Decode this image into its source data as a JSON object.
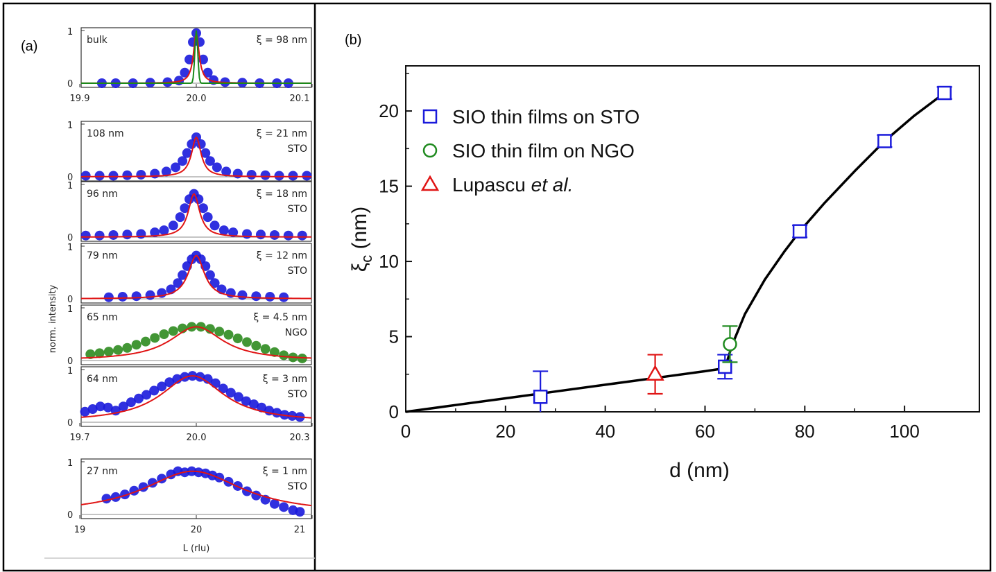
{
  "panels": {
    "a_label": "(a)",
    "b_label": "(b)"
  },
  "chart_data": [
    {
      "type": "scatter",
      "panel": "a",
      "ylabel": "norm. intensity",
      "xlabel": "L (rlu)",
      "subplots": [
        {
          "thickness_label": "bulk",
          "xi_label": "ξ = 98 nm",
          "substrate_label": "",
          "xlim": [
            19.9,
            20.1
          ],
          "x_ticks": [
            "19.9",
            "20.0",
            "20.1"
          ],
          "y_ticks": [
            "0",
            "1"
          ],
          "center": 20.0,
          "fwhm": 0.006,
          "marker_color": "#1a1adb",
          "extra_fit_color": "#1a8a1a",
          "points": [
            [
              19.918,
              0.0
            ],
            [
              19.93,
              0.0
            ],
            [
              19.945,
              0.0
            ],
            [
              19.96,
              0.01
            ],
            [
              19.975,
              0.02
            ],
            [
              19.985,
              0.05
            ],
            [
              19.99,
              0.2
            ],
            [
              19.994,
              0.45
            ],
            [
              19.997,
              0.78
            ],
            [
              20.0,
              0.95
            ],
            [
              20.003,
              0.78
            ],
            [
              20.006,
              0.45
            ],
            [
              20.01,
              0.2
            ],
            [
              20.015,
              0.06
            ],
            [
              20.025,
              0.02
            ],
            [
              20.04,
              0.01
            ],
            [
              20.055,
              0.0
            ],
            [
              20.07,
              0.0
            ],
            [
              20.08,
              0.0
            ]
          ]
        },
        {
          "thickness_label": "108 nm",
          "xi_label": "ξ = 21 nm",
          "substrate_label": "STO",
          "xlim": [
            19.5,
            20.5
          ],
          "x_ticks": [],
          "y_ticks": [
            "0",
            "1"
          ],
          "center": 20.0,
          "fwhm": 0.05,
          "marker_color": "#1a1adb",
          "points": [
            [
              19.52,
              0.02
            ],
            [
              19.58,
              0.02
            ],
            [
              19.64,
              0.02
            ],
            [
              19.7,
              0.03
            ],
            [
              19.76,
              0.04
            ],
            [
              19.82,
              0.06
            ],
            [
              19.87,
              0.1
            ],
            [
              19.91,
              0.18
            ],
            [
              19.94,
              0.3
            ],
            [
              19.96,
              0.45
            ],
            [
              19.98,
              0.62
            ],
            [
              20.0,
              0.75
            ],
            [
              20.02,
              0.62
            ],
            [
              20.04,
              0.45
            ],
            [
              20.06,
              0.3
            ],
            [
              20.09,
              0.18
            ],
            [
              20.13,
              0.1
            ],
            [
              20.18,
              0.06
            ],
            [
              20.24,
              0.04
            ],
            [
              20.3,
              0.03
            ],
            [
              20.36,
              0.02
            ],
            [
              20.42,
              0.02
            ],
            [
              20.48,
              0.02
            ]
          ]
        },
        {
          "thickness_label": "96 nm",
          "xi_label": "ξ = 18 nm",
          "substrate_label": "STO",
          "xlim": [
            19.5,
            20.5
          ],
          "x_ticks": [],
          "y_ticks": [
            "0",
            "1"
          ],
          "center": 19.99,
          "fwhm": 0.06,
          "marker_color": "#1a1adb",
          "points": [
            [
              19.52,
              0.03
            ],
            [
              19.58,
              0.03
            ],
            [
              19.64,
              0.04
            ],
            [
              19.7,
              0.05
            ],
            [
              19.76,
              0.06
            ],
            [
              19.82,
              0.09
            ],
            [
              19.86,
              0.13
            ],
            [
              19.9,
              0.22
            ],
            [
              19.93,
              0.38
            ],
            [
              19.95,
              0.55
            ],
            [
              19.97,
              0.72
            ],
            [
              19.99,
              0.82
            ],
            [
              20.01,
              0.72
            ],
            [
              20.03,
              0.55
            ],
            [
              20.05,
              0.38
            ],
            [
              20.08,
              0.22
            ],
            [
              20.12,
              0.13
            ],
            [
              20.16,
              0.09
            ],
            [
              20.22,
              0.06
            ],
            [
              20.28,
              0.05
            ],
            [
              20.34,
              0.04
            ],
            [
              20.4,
              0.03
            ],
            [
              20.46,
              0.03
            ]
          ]
        },
        {
          "thickness_label": "79 nm",
          "xi_label": "ξ = 12 nm",
          "substrate_label": "STO",
          "xlim": [
            19.5,
            20.5
          ],
          "x_ticks": [],
          "y_ticks": [
            "0",
            "1"
          ],
          "center": 20.0,
          "fwhm": 0.085,
          "marker_color": "#1a1adb",
          "points": [
            [
              19.62,
              0.03
            ],
            [
              19.68,
              0.04
            ],
            [
              19.74,
              0.05
            ],
            [
              19.8,
              0.07
            ],
            [
              19.85,
              0.11
            ],
            [
              19.89,
              0.18
            ],
            [
              19.92,
              0.3
            ],
            [
              19.94,
              0.45
            ],
            [
              19.96,
              0.62
            ],
            [
              19.98,
              0.75
            ],
            [
              20.0,
              0.82
            ],
            [
              20.02,
              0.75
            ],
            [
              20.04,
              0.62
            ],
            [
              20.06,
              0.45
            ],
            [
              20.08,
              0.3
            ],
            [
              20.11,
              0.18
            ],
            [
              20.15,
              0.11
            ],
            [
              20.2,
              0.07
            ],
            [
              20.26,
              0.05
            ],
            [
              20.32,
              0.04
            ],
            [
              20.38,
              0.03
            ]
          ]
        },
        {
          "thickness_label": "65 nm",
          "xi_label": "ξ = 4.5 nm",
          "substrate_label": "NGO",
          "xlim": [
            19.5,
            20.5
          ],
          "x_ticks": [],
          "y_ticks": [
            "0",
            "1"
          ],
          "center": 20.0,
          "fwhm": 0.28,
          "marker_color": "#2e8b1f",
          "points": [
            [
              19.54,
              0.12
            ],
            [
              19.58,
              0.14
            ],
            [
              19.62,
              0.17
            ],
            [
              19.66,
              0.2
            ],
            [
              19.7,
              0.24
            ],
            [
              19.74,
              0.3
            ],
            [
              19.78,
              0.36
            ],
            [
              19.82,
              0.43
            ],
            [
              19.86,
              0.5
            ],
            [
              19.9,
              0.56
            ],
            [
              19.94,
              0.61
            ],
            [
              19.98,
              0.64
            ],
            [
              20.02,
              0.64
            ],
            [
              20.06,
              0.6
            ],
            [
              20.1,
              0.55
            ],
            [
              20.14,
              0.49
            ],
            [
              20.18,
              0.42
            ],
            [
              20.22,
              0.35
            ],
            [
              20.26,
              0.28
            ],
            [
              20.3,
              0.22
            ],
            [
              20.34,
              0.16
            ],
            [
              20.38,
              0.1
            ],
            [
              20.42,
              0.06
            ],
            [
              20.46,
              0.04
            ]
          ]
        },
        {
          "thickness_label": "64 nm",
          "xi_label": "ξ = 3 nm",
          "substrate_label": "STO",
          "xlim": [
            19.7,
            20.3
          ],
          "x_ticks": [
            "19.7",
            "20.0",
            "20.3"
          ],
          "y_ticks": [
            "0",
            "1"
          ],
          "center": 19.99,
          "fwhm": 0.2,
          "marker_color": "#1a1adb",
          "points": [
            [
              19.71,
              0.2
            ],
            [
              19.73,
              0.25
            ],
            [
              19.75,
              0.3
            ],
            [
              19.77,
              0.28
            ],
            [
              19.79,
              0.22
            ],
            [
              19.81,
              0.3
            ],
            [
              19.83,
              0.38
            ],
            [
              19.85,
              0.45
            ],
            [
              19.87,
              0.52
            ],
            [
              19.89,
              0.6
            ],
            [
              19.91,
              0.68
            ],
            [
              19.93,
              0.76
            ],
            [
              19.95,
              0.82
            ],
            [
              19.97,
              0.86
            ],
            [
              19.99,
              0.88
            ],
            [
              20.01,
              0.86
            ],
            [
              20.03,
              0.82
            ],
            [
              20.05,
              0.74
            ],
            [
              20.07,
              0.64
            ],
            [
              20.09,
              0.56
            ],
            [
              20.11,
              0.48
            ],
            [
              20.13,
              0.4
            ],
            [
              20.15,
              0.34
            ],
            [
              20.17,
              0.28
            ],
            [
              20.19,
              0.22
            ],
            [
              20.21,
              0.18
            ],
            [
              20.23,
              0.14
            ],
            [
              20.25,
              0.12
            ],
            [
              20.27,
              0.1
            ]
          ]
        },
        {
          "thickness_label": "27 nm",
          "xi_label": "ξ = 1 nm",
          "substrate_label": "STO",
          "xlim": [
            19.0,
            21.0
          ],
          "x_ticks": [
            "19",
            "20",
            "21"
          ],
          "y_ticks": [
            "0",
            "1"
          ],
          "center": 19.97,
          "fwhm": 1.05,
          "marker_color": "#1a1adb",
          "points": [
            [
              19.22,
              0.3
            ],
            [
              19.3,
              0.33
            ],
            [
              19.38,
              0.38
            ],
            [
              19.46,
              0.45
            ],
            [
              19.54,
              0.52
            ],
            [
              19.62,
              0.6
            ],
            [
              19.7,
              0.68
            ],
            [
              19.78,
              0.76
            ],
            [
              19.84,
              0.82
            ],
            [
              19.9,
              0.8
            ],
            [
              19.96,
              0.82
            ],
            [
              20.02,
              0.8
            ],
            [
              20.08,
              0.78
            ],
            [
              20.14,
              0.74
            ],
            [
              20.2,
              0.7
            ],
            [
              20.28,
              0.62
            ],
            [
              20.36,
              0.54
            ],
            [
              20.44,
              0.44
            ],
            [
              20.52,
              0.36
            ],
            [
              20.6,
              0.28
            ],
            [
              20.68,
              0.2
            ],
            [
              20.76,
              0.14
            ],
            [
              20.84,
              0.08
            ],
            [
              20.9,
              0.05
            ]
          ]
        }
      ]
    },
    {
      "type": "scatter",
      "panel": "b",
      "xlabel": "d (nm)",
      "ylabel": "ξc (nm)",
      "ylabel_main": "ξ",
      "ylabel_sub": "c",
      "ylabel_unit": " (nm)",
      "xlim": [
        0,
        115
      ],
      "ylim": [
        0,
        23
      ],
      "x_ticks": [
        0,
        20,
        40,
        60,
        80,
        100
      ],
      "y_ticks": [
        0,
        5,
        10,
        15,
        20
      ],
      "legend_position": "top-left",
      "series": [
        {
          "name": "SIO thin films on STO",
          "marker": "square",
          "color": "#1a1adb",
          "points": [
            {
              "x": 27,
              "y": 1.0,
              "err": 1.7
            },
            {
              "x": 64,
              "y": 3.0,
              "err": 0.8
            },
            {
              "x": 79,
              "y": 12.0,
              "err": 0.4
            },
            {
              "x": 96,
              "y": 18.0,
              "err": 0.4
            },
            {
              "x": 108,
              "y": 21.2,
              "err": 0.4
            }
          ]
        },
        {
          "name": "SIO thin film on NGO",
          "marker": "circle",
          "color": "#1f8a1f",
          "points": [
            {
              "x": 65,
              "y": 4.5,
              "err": 1.2
            }
          ]
        },
        {
          "name_prefix": "Lupascu ",
          "name_italic": "et al.",
          "marker": "triangle",
          "color": "#e01515",
          "points": [
            {
              "x": 50,
              "y": 2.5,
              "err": 1.3
            }
          ]
        }
      ],
      "guide_curve": {
        "color": "#000000",
        "points": [
          [
            0,
            0
          ],
          [
            10,
            0.45
          ],
          [
            20,
            0.9
          ],
          [
            30,
            1.35
          ],
          [
            40,
            1.8
          ],
          [
            50,
            2.25
          ],
          [
            60,
            2.7
          ],
          [
            64,
            2.9
          ],
          [
            65.5,
            4.5
          ],
          [
            68,
            6.5
          ],
          [
            72,
            8.8
          ],
          [
            76,
            10.7
          ],
          [
            79,
            12.0
          ],
          [
            84,
            13.9
          ],
          [
            90,
            16.0
          ],
          [
            96,
            18.0
          ],
          [
            102,
            19.7
          ],
          [
            108,
            21.2
          ]
        ]
      }
    }
  ]
}
